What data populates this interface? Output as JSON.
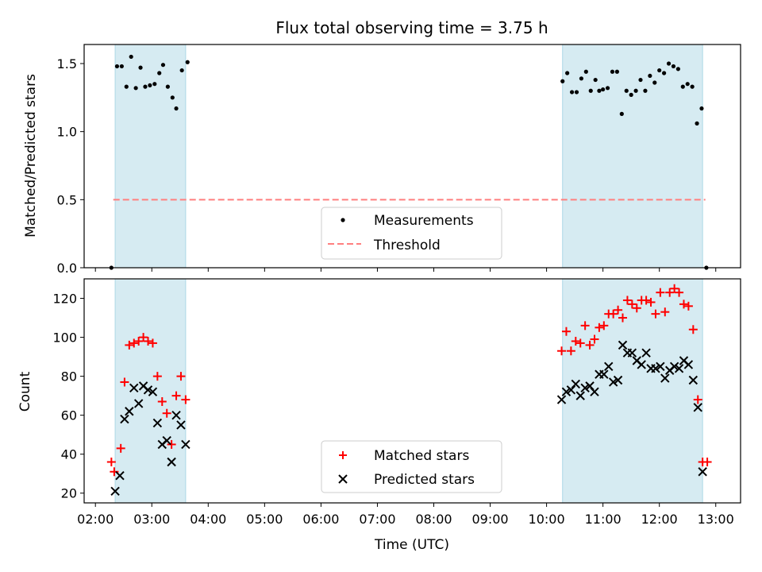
{
  "chart_data": [
    {
      "type": "scatter",
      "title": "Flux total observing time = 3.75 h",
      "xlabel": "",
      "ylabel": "Matched/Predicted stars",
      "xlim": [
        "02:00",
        "13:00"
      ],
      "ylim": [
        0,
        1.64
      ],
      "yticks": [
        "0.0",
        "0.5",
        "1.0",
        "1.5"
      ],
      "shaded_regions": [
        [
          "02:21",
          "03:36"
        ],
        [
          "10:17",
          "12:46"
        ]
      ],
      "threshold": {
        "name": "Threshold",
        "value": 0.5,
        "x_range": [
          "02:19",
          "12:49"
        ],
        "color": "#ff7f7f"
      },
      "series": [
        {
          "name": "Measurements",
          "color": "#000000",
          "points": [
            [
              "02:17",
              0.0
            ],
            [
              "02:23",
              1.48
            ],
            [
              "02:28",
              1.48
            ],
            [
              "02:33",
              1.33
            ],
            [
              "02:38",
              1.55
            ],
            [
              "02:43",
              1.32
            ],
            [
              "02:48",
              1.47
            ],
            [
              "02:53",
              1.33
            ],
            [
              "02:58",
              1.34
            ],
            [
              "03:03",
              1.35
            ],
            [
              "03:08",
              1.43
            ],
            [
              "03:12",
              1.49
            ],
            [
              "03:17",
              1.33
            ],
            [
              "03:22",
              1.25
            ],
            [
              "03:26",
              1.17
            ],
            [
              "03:32",
              1.45
            ],
            [
              "03:38",
              1.51
            ],
            [
              "10:17",
              1.37
            ],
            [
              "10:22",
              1.43
            ],
            [
              "10:27",
              1.29
            ],
            [
              "10:32",
              1.29
            ],
            [
              "10:37",
              1.39
            ],
            [
              "10:42",
              1.44
            ],
            [
              "10:47",
              1.3
            ],
            [
              "10:52",
              1.38
            ],
            [
              "10:56",
              1.3
            ],
            [
              "11:00",
              1.31
            ],
            [
              "11:05",
              1.32
            ],
            [
              "11:10",
              1.44
            ],
            [
              "11:15",
              1.44
            ],
            [
              "11:20",
              1.13
            ],
            [
              "11:25",
              1.3
            ],
            [
              "11:30",
              1.27
            ],
            [
              "11:35",
              1.3
            ],
            [
              "11:40",
              1.38
            ],
            [
              "11:45",
              1.3
            ],
            [
              "11:50",
              1.41
            ],
            [
              "11:55",
              1.36
            ],
            [
              "12:00",
              1.45
            ],
            [
              "12:05",
              1.43
            ],
            [
              "12:10",
              1.5
            ],
            [
              "12:15",
              1.48
            ],
            [
              "12:20",
              1.46
            ],
            [
              "12:25",
              1.33
            ],
            [
              "12:30",
              1.35
            ],
            [
              "12:35",
              1.33
            ],
            [
              "12:40",
              1.06
            ],
            [
              "12:45",
              1.17
            ],
            [
              "12:50",
              0.0
            ]
          ]
        }
      ],
      "legend_position": "lower-center"
    },
    {
      "type": "scatter",
      "title": "",
      "xlabel": "Time (UTC)",
      "ylabel": "Count",
      "xlim": [
        "02:00",
        "13:00"
      ],
      "ylim": [
        15,
        130
      ],
      "xticks": [
        "02:00",
        "03:00",
        "04:00",
        "05:00",
        "06:00",
        "07:00",
        "08:00",
        "09:00",
        "10:00",
        "11:00",
        "12:00",
        "13:00"
      ],
      "yticks": [
        "20",
        "40",
        "60",
        "80",
        "100",
        "120"
      ],
      "shaded_regions": [
        [
          "02:21",
          "03:36"
        ],
        [
          "10:17",
          "12:46"
        ]
      ],
      "series": [
        {
          "name": "Matched stars",
          "marker": "plus",
          "color": "#ff0000",
          "points": [
            [
              "02:17",
              36
            ],
            [
              "02:20",
              31
            ],
            [
              "02:27",
              43
            ],
            [
              "02:31",
              77
            ],
            [
              "02:36",
              96
            ],
            [
              "02:41",
              97
            ],
            [
              "02:46",
              98
            ],
            [
              "02:51",
              100
            ],
            [
              "02:56",
              98
            ],
            [
              "03:01",
              97
            ],
            [
              "03:06",
              80
            ],
            [
              "03:11",
              67
            ],
            [
              "03:16",
              61
            ],
            [
              "03:21",
              45
            ],
            [
              "03:26",
              70
            ],
            [
              "03:31",
              80
            ],
            [
              "03:36",
              68
            ],
            [
              "10:16",
              93
            ],
            [
              "10:21",
              103
            ],
            [
              "10:26",
              93
            ],
            [
              "10:31",
              98
            ],
            [
              "10:36",
              97
            ],
            [
              "10:41",
              106
            ],
            [
              "10:46",
              96
            ],
            [
              "10:51",
              99
            ],
            [
              "10:56",
              105
            ],
            [
              "11:01",
              106
            ],
            [
              "11:06",
              112
            ],
            [
              "11:11",
              112
            ],
            [
              "11:16",
              114
            ],
            [
              "11:21",
              110
            ],
            [
              "11:26",
              119
            ],
            [
              "11:31",
              117
            ],
            [
              "11:36",
              115
            ],
            [
              "11:41",
              119
            ],
            [
              "11:46",
              119
            ],
            [
              "11:51",
              118
            ],
            [
              "11:56",
              112
            ],
            [
              "12:01",
              123
            ],
            [
              "12:06",
              113
            ],
            [
              "12:11",
              123
            ],
            [
              "12:16",
              125
            ],
            [
              "12:21",
              123
            ],
            [
              "12:26",
              117
            ],
            [
              "12:31",
              116
            ],
            [
              "12:36",
              104
            ],
            [
              "12:41",
              68
            ],
            [
              "12:46",
              36
            ],
            [
              "12:51",
              36
            ]
          ]
        },
        {
          "name": "Predicted stars",
          "marker": "x",
          "color": "#000000",
          "points": [
            [
              "02:21",
              21
            ],
            [
              "02:26",
              29
            ],
            [
              "02:31",
              58
            ],
            [
              "02:36",
              62
            ],
            [
              "02:41",
              74
            ],
            [
              "02:46",
              66
            ],
            [
              "02:51",
              75
            ],
            [
              "02:56",
              73
            ],
            [
              "03:01",
              72
            ],
            [
              "03:06",
              56
            ],
            [
              "03:11",
              45
            ],
            [
              "03:16",
              47
            ],
            [
              "03:21",
              36
            ],
            [
              "03:26",
              60
            ],
            [
              "03:31",
              55
            ],
            [
              "03:36",
              45
            ],
            [
              "10:16",
              68
            ],
            [
              "10:21",
              72
            ],
            [
              "10:26",
              73
            ],
            [
              "10:31",
              76
            ],
            [
              "10:36",
              70
            ],
            [
              "10:41",
              74
            ],
            [
              "10:46",
              75
            ],
            [
              "10:51",
              72
            ],
            [
              "10:56",
              81
            ],
            [
              "11:01",
              81
            ],
            [
              "11:06",
              85
            ],
            [
              "11:11",
              77
            ],
            [
              "11:16",
              78
            ],
            [
              "11:21",
              96
            ],
            [
              "11:26",
              92
            ],
            [
              "11:31",
              92
            ],
            [
              "11:36",
              88
            ],
            [
              "11:41",
              86
            ],
            [
              "11:46",
              92
            ],
            [
              "11:51",
              84
            ],
            [
              "11:56",
              84
            ],
            [
              "12:01",
              85
            ],
            [
              "12:06",
              79
            ],
            [
              "12:11",
              83
            ],
            [
              "12:16",
              85
            ],
            [
              "12:21",
              84
            ],
            [
              "12:26",
              88
            ],
            [
              "12:31",
              86
            ],
            [
              "12:36",
              78
            ],
            [
              "12:41",
              64
            ],
            [
              "12:46",
              31
            ]
          ]
        }
      ],
      "legend_position": "lower-center"
    }
  ]
}
